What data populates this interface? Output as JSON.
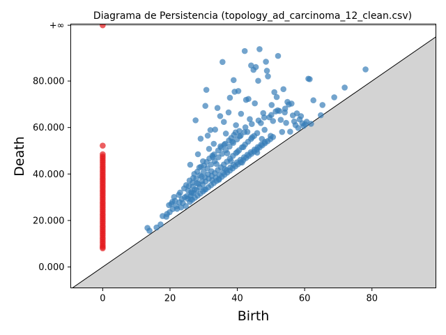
{
  "chart_data": {
    "type": "scatter",
    "title": "Diagrama de Persistencia (topology_ad_carcinoma_12_clean.csv)",
    "xlabel": "Birth",
    "ylabel": "Death",
    "xlim": [
      -9.5,
      99
    ],
    "ylim": [
      -9,
      104.5
    ],
    "x_ticks": [
      0,
      20,
      40,
      60,
      80
    ],
    "x_tick_labels": [
      "0",
      "20",
      "40",
      "60",
      "80"
    ],
    "y_ticks": [
      0,
      20,
      40,
      60,
      80
    ],
    "y_tick_labels": [
      "0.000",
      "20.000",
      "40.000",
      "60.000",
      "80.000"
    ],
    "infinity_value": 104,
    "infinity_label": "+∞",
    "diagonal": true,
    "colors": {
      "h0": "#e41a1c",
      "h1": "#377eb8",
      "below_diagonal": "#d3d3d3",
      "infinity_line": "#808080"
    },
    "series": [
      {
        "color": "#e41a1c",
        "points": [
          [
            0,
            104
          ],
          [
            0,
            52.2
          ],
          [
            0,
            48.5
          ],
          [
            0,
            47.6
          ],
          [
            0,
            46.8
          ],
          [
            0,
            45.9
          ],
          [
            0,
            45.1
          ],
          [
            0,
            44.2
          ],
          [
            0,
            43.3
          ],
          [
            0,
            42.5
          ],
          [
            0,
            41.6
          ],
          [
            0,
            40.8
          ],
          [
            0,
            39.9
          ],
          [
            0,
            39.1
          ],
          [
            0,
            38.2
          ],
          [
            0,
            37.4
          ],
          [
            0,
            36.5
          ],
          [
            0,
            35.7
          ],
          [
            0,
            34.8
          ],
          [
            0,
            34.0
          ],
          [
            0,
            33.1
          ],
          [
            0,
            32.3
          ],
          [
            0,
            31.4
          ],
          [
            0,
            30.6
          ],
          [
            0,
            29.7
          ],
          [
            0,
            28.9
          ],
          [
            0,
            28.0
          ],
          [
            0,
            27.2
          ],
          [
            0,
            26.3
          ],
          [
            0,
            25.5
          ],
          [
            0,
            24.6
          ],
          [
            0,
            23.8
          ],
          [
            0,
            22.9
          ],
          [
            0,
            22.1
          ],
          [
            0,
            21.2
          ],
          [
            0,
            20.4
          ],
          [
            0,
            19.5
          ],
          [
            0,
            18.7
          ],
          [
            0,
            17.8
          ],
          [
            0,
            17.0
          ],
          [
            0,
            16.1
          ],
          [
            0,
            15.3
          ],
          [
            0,
            14.4
          ],
          [
            0,
            13.6
          ],
          [
            0,
            12.7
          ],
          [
            0,
            11.9
          ],
          [
            0,
            11.0
          ],
          [
            0,
            10.2
          ],
          [
            0,
            9.3
          ],
          [
            0,
            8.6
          ],
          [
            0,
            8.0
          ]
        ]
      },
      {
        "color": "#377eb8",
        "points": [
          [
            13.3,
            16.8
          ],
          [
            13.9,
            15.6
          ],
          [
            16.0,
            17.0
          ],
          [
            17.2,
            18.3
          ],
          [
            17.8,
            21.9
          ],
          [
            19.1,
            22.8
          ],
          [
            19.7,
            26.6
          ],
          [
            20.4,
            27.1
          ],
          [
            20.7,
            28.0
          ],
          [
            21.5,
            28.4
          ],
          [
            22.1,
            25.0
          ],
          [
            22.6,
            31.0
          ],
          [
            23.3,
            25.6
          ],
          [
            23.8,
            27.5
          ],
          [
            24.2,
            33.8
          ],
          [
            24.7,
            26.2
          ],
          [
            25.0,
            30.5
          ],
          [
            25.4,
            32.9
          ],
          [
            25.8,
            37.2
          ],
          [
            26.0,
            44.0
          ],
          [
            26.2,
            29.1
          ],
          [
            26.5,
            31.8
          ],
          [
            26.8,
            34.6
          ],
          [
            27.2,
            40.0
          ],
          [
            27.6,
            63.1
          ],
          [
            28.0,
            36.1
          ],
          [
            28.3,
            48.5
          ],
          [
            28.7,
            42.8
          ],
          [
            29.1,
            55.2
          ],
          [
            29.4,
            38.9
          ],
          [
            29.8,
            45.5
          ],
          [
            30.2,
            33.2
          ],
          [
            30.5,
            69.3
          ],
          [
            30.8,
            76.2
          ],
          [
            31.2,
            56.5
          ],
          [
            31.6,
            50.8
          ],
          [
            32.0,
            58.9
          ],
          [
            32.3,
            41.2
          ],
          [
            32.7,
            47.3
          ],
          [
            33.0,
            53.0
          ],
          [
            33.4,
            59.1
          ],
          [
            33.8,
            44.3
          ],
          [
            34.1,
            68.4
          ],
          [
            34.5,
            37.5
          ],
          [
            34.9,
            64.9
          ],
          [
            35.2,
            51.3
          ],
          [
            35.6,
            88.2
          ],
          [
            36.0,
            62.4
          ],
          [
            36.3,
            42.1
          ],
          [
            36.6,
            57.4
          ],
          [
            37.0,
            48.9
          ],
          [
            37.4,
            66.5
          ],
          [
            37.8,
            72.8
          ],
          [
            38.1,
            45.6
          ],
          [
            38.5,
            53.9
          ],
          [
            38.9,
            80.4
          ],
          [
            39.2,
            75.4
          ],
          [
            39.6,
            61.0
          ],
          [
            40.0,
            49.5
          ],
          [
            40.3,
            75.7
          ],
          [
            40.7,
            56.2
          ],
          [
            41.1,
            65.9
          ],
          [
            41.4,
            44.9
          ],
          [
            41.8,
            51.6
          ],
          [
            42.2,
            92.9
          ],
          [
            42.6,
            71.9
          ],
          [
            43.0,
            58.1
          ],
          [
            43.3,
            72.3
          ],
          [
            43.7,
            63.6
          ],
          [
            44.1,
            86.7
          ],
          [
            44.4,
            55.8
          ],
          [
            44.8,
            84.8
          ],
          [
            45.2,
            70.4
          ],
          [
            45.5,
            86.0
          ],
          [
            45.9,
            49.2
          ],
          [
            46.2,
            80.1
          ],
          [
            46.6,
            93.7
          ],
          [
            47.0,
            61.9
          ],
          [
            47.3,
            55.1
          ],
          [
            47.7,
            66.2
          ],
          [
            48.1,
            59.0
          ],
          [
            48.5,
            88.3
          ],
          [
            48.8,
            84.4
          ],
          [
            49.1,
            82.0
          ],
          [
            49.5,
            64.4
          ],
          [
            49.9,
            56.4
          ],
          [
            50.2,
            69.7
          ],
          [
            50.6,
            62.8
          ],
          [
            51.0,
            75.2
          ],
          [
            51.4,
            66.9
          ],
          [
            51.7,
            73.1
          ],
          [
            52.1,
            90.8
          ],
          [
            52.5,
            67.1
          ],
          [
            52.9,
            63.3
          ],
          [
            53.3,
            58.1
          ],
          [
            53.7,
            76.5
          ],
          [
            54.1,
            66.5
          ],
          [
            54.5,
            62.0
          ],
          [
            54.9,
            71.0
          ],
          [
            55.3,
            69.9
          ],
          [
            55.7,
            58.2
          ],
          [
            56.1,
            70.3
          ],
          [
            56.5,
            65.2
          ],
          [
            56.9,
            62.6
          ],
          [
            57.3,
            61.0
          ],
          [
            57.7,
            66.1
          ],
          [
            58.1,
            59.8
          ],
          [
            58.5,
            63.5
          ],
          [
            58.9,
            64.9
          ],
          [
            59.3,
            61.8
          ],
          [
            59.7,
            60.7
          ],
          [
            60.2,
            61.4
          ],
          [
            60.6,
            62.5
          ],
          [
            61.1,
            81.0
          ],
          [
            61.5,
            80.8
          ],
          [
            61.9,
            61.6
          ],
          [
            62.6,
            71.7
          ],
          [
            64.8,
            65.3
          ],
          [
            65.3,
            69.7
          ],
          [
            68.8,
            73.0
          ],
          [
            71.9,
            77.2
          ],
          [
            78.1,
            85.0
          ],
          [
            25.2,
            29.4
          ],
          [
            26.1,
            30.6
          ],
          [
            27.0,
            31.9
          ],
          [
            27.9,
            33.1
          ],
          [
            28.8,
            34.3
          ],
          [
            29.7,
            35.5
          ],
          [
            30.6,
            36.8
          ],
          [
            31.5,
            38.0
          ],
          [
            32.4,
            39.2
          ],
          [
            33.3,
            40.4
          ],
          [
            34.2,
            41.7
          ],
          [
            35.1,
            42.9
          ],
          [
            36.0,
            44.1
          ],
          [
            36.9,
            45.3
          ],
          [
            37.8,
            46.6
          ],
          [
            38.7,
            47.8
          ],
          [
            39.6,
            49.0
          ],
          [
            40.5,
            50.2
          ],
          [
            41.4,
            51.5
          ],
          [
            42.3,
            52.7
          ],
          [
            43.2,
            53.9
          ],
          [
            44.1,
            55.1
          ],
          [
            45.0,
            56.4
          ],
          [
            45.9,
            57.6
          ],
          [
            25.6,
            34.8
          ],
          [
            26.7,
            36.3
          ],
          [
            27.8,
            37.9
          ],
          [
            28.9,
            39.4
          ],
          [
            30.0,
            41.0
          ],
          [
            31.1,
            42.5
          ],
          [
            32.2,
            44.1
          ],
          [
            33.3,
            45.6
          ],
          [
            34.4,
            47.2
          ],
          [
            35.5,
            48.7
          ],
          [
            36.6,
            50.3
          ],
          [
            37.7,
            51.8
          ],
          [
            38.8,
            53.4
          ],
          [
            39.9,
            54.9
          ],
          [
            41.0,
            56.5
          ],
          [
            42.1,
            58.0
          ],
          [
            25.9,
            28.0
          ],
          [
            26.6,
            28.9
          ],
          [
            27.4,
            29.8
          ],
          [
            28.2,
            30.7
          ],
          [
            29.0,
            31.6
          ],
          [
            29.8,
            32.5
          ],
          [
            30.6,
            33.4
          ],
          [
            31.4,
            34.3
          ],
          [
            32.2,
            35.2
          ],
          [
            33.0,
            36.1
          ],
          [
            33.8,
            37.0
          ],
          [
            34.6,
            37.9
          ],
          [
            35.4,
            38.8
          ],
          [
            36.2,
            39.7
          ],
          [
            37.0,
            40.6
          ],
          [
            37.8,
            41.5
          ],
          [
            38.6,
            42.4
          ],
          [
            39.4,
            43.3
          ],
          [
            40.2,
            44.2
          ],
          [
            41.0,
            45.1
          ],
          [
            41.8,
            46.0
          ],
          [
            42.6,
            46.9
          ],
          [
            43.4,
            47.8
          ],
          [
            44.2,
            48.7
          ],
          [
            45.0,
            49.6
          ],
          [
            45.8,
            50.5
          ],
          [
            46.6,
            51.4
          ],
          [
            47.4,
            52.3
          ],
          [
            48.2,
            53.2
          ],
          [
            49.0,
            54.1
          ],
          [
            49.8,
            55.0
          ],
          [
            50.6,
            55.9
          ],
          [
            26.3,
            32.2
          ],
          [
            27.3,
            33.3
          ],
          [
            28.4,
            35.7
          ],
          [
            29.5,
            36.9
          ],
          [
            30.4,
            38.6
          ],
          [
            31.3,
            39.8
          ],
          [
            32.5,
            37.3
          ],
          [
            33.6,
            38.4
          ],
          [
            34.7,
            39.5
          ],
          [
            35.8,
            40.6
          ],
          [
            36.8,
            41.7
          ],
          [
            37.9,
            42.8
          ],
          [
            38.9,
            43.9
          ],
          [
            39.9,
            45.0
          ],
          [
            40.9,
            46.1
          ],
          [
            42.0,
            47.2
          ],
          [
            43.0,
            48.3
          ],
          [
            44.0,
            49.4
          ],
          [
            45.1,
            50.5
          ],
          [
            46.1,
            51.6
          ],
          [
            47.1,
            52.7
          ],
          [
            48.2,
            53.8
          ],
          [
            29.2,
            43.1
          ],
          [
            30.9,
            45.2
          ],
          [
            32.6,
            47.9
          ],
          [
            34.3,
            50.1
          ],
          [
            36.1,
            52.6
          ],
          [
            37.5,
            54.4
          ],
          [
            39.0,
            56.8
          ],
          [
            40.6,
            58.5
          ],
          [
            42.4,
            60.1
          ],
          [
            44.3,
            61.5
          ],
          [
            46.3,
            63.0
          ],
          [
            48.0,
            64.3
          ],
          [
            50.1,
            65.4
          ],
          [
            52.0,
            67.4
          ],
          [
            54.2,
            68.1
          ],
          [
            24.4,
            30.0
          ],
          [
            23.5,
            29.2
          ],
          [
            22.8,
            27.8
          ],
          [
            21.9,
            26.1
          ],
          [
            20.8,
            24.9
          ],
          [
            19.9,
            23.6
          ],
          [
            18.9,
            21.6
          ],
          [
            21.2,
            30.1
          ],
          [
            23.0,
            32.0
          ],
          [
            24.8,
            35.2
          ],
          [
            26.9,
            38.3
          ],
          [
            28.1,
            41.0
          ],
          [
            30.1,
            43.6
          ],
          [
            31.7,
            46.7
          ],
          [
            33.1,
            48.4
          ],
          [
            35.0,
            51.9
          ],
          [
            36.4,
            53.0
          ],
          [
            38.2,
            55.5
          ],
          [
            39.5,
            57.9
          ]
        ]
      }
    ]
  }
}
